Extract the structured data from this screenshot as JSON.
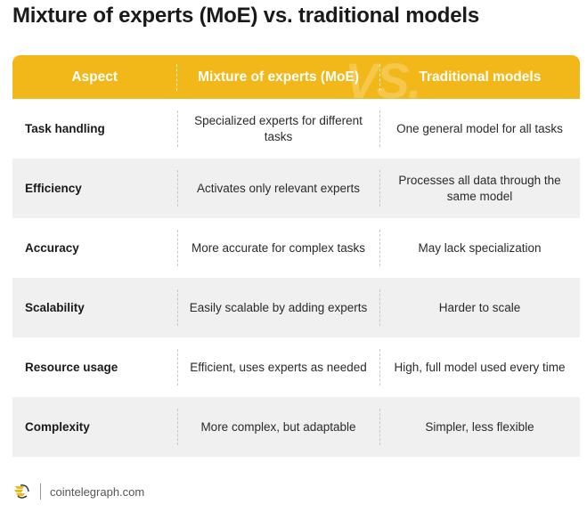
{
  "title": "Mixture of experts (MoE) vs. traditional models",
  "header": {
    "aspect": "Aspect",
    "moe": "Mixture of experts (MoE)",
    "traditional": "Traditional models",
    "watermark": "VS."
  },
  "rows": [
    {
      "aspect": "Task handling",
      "moe": "Specialized experts for different tasks",
      "traditional": "One general model for all tasks"
    },
    {
      "aspect": "Efficiency",
      "moe": "Activates only relevant experts",
      "traditional": "Processes all data through the same model"
    },
    {
      "aspect": "Accuracy",
      "moe": "More accurate for complex tasks",
      "traditional": "May lack specialization"
    },
    {
      "aspect": "Scalability",
      "moe": "Easily scalable by adding experts",
      "traditional": "Harder to scale"
    },
    {
      "aspect": "Resource usage",
      "moe": "Efficient, uses experts as needed",
      "traditional": "High, full model used every time"
    },
    {
      "aspect": "Complexity",
      "moe": "More complex, but adaptable",
      "traditional": "Simpler, less flexible"
    }
  ],
  "footer": {
    "source": "cointelegraph.com",
    "logo_icon": "cointelegraph-logo-icon"
  },
  "colors": {
    "header_bg": "#f2b81a",
    "row_shade": "#f0f0f0",
    "title": "#1a1a1a"
  }
}
